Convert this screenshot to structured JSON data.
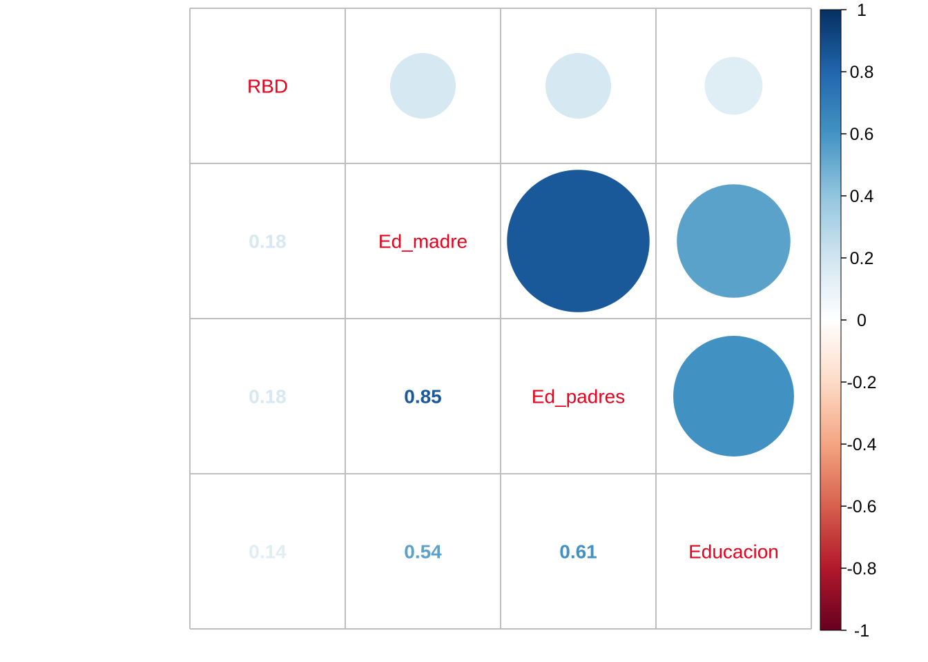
{
  "chart_data": {
    "type": "heatmap",
    "variables": [
      "RBD",
      "Ed_madre",
      "Ed_padres",
      "Educacion"
    ],
    "correlations": [
      [
        1,
        0.18,
        0.18,
        0.14
      ],
      [
        0.18,
        1,
        0.85,
        0.54
      ],
      [
        0.18,
        0.85,
        1,
        0.61
      ],
      [
        0.14,
        0.54,
        0.61,
        1
      ]
    ],
    "upper_method": "circle",
    "lower_method": "number",
    "diagonal": "variable names",
    "number_labels": [
      {
        "row": 1,
        "col": 0,
        "text": "0.18"
      },
      {
        "row": 2,
        "col": 0,
        "text": "0.18"
      },
      {
        "row": 2,
        "col": 1,
        "text": "0.85"
      },
      {
        "row": 3,
        "col": 0,
        "text": "0.14"
      },
      {
        "row": 3,
        "col": 1,
        "text": "0.54"
      },
      {
        "row": 3,
        "col": 2,
        "text": "0.61"
      }
    ],
    "colorbar": {
      "range": [
        -1,
        1
      ],
      "ticks": [
        "1",
        "0.8",
        "0.6",
        "0.4",
        "0.2",
        "0",
        "-0.2",
        "-0.4",
        "-0.6",
        "-0.8",
        "-1"
      ],
      "tick_values": [
        1,
        0.8,
        0.6,
        0.4,
        0.2,
        0,
        -0.2,
        -0.4,
        -0.6,
        -0.8,
        -1
      ],
      "colors": [
        "#67001F",
        "#B2182B",
        "#D6604D",
        "#F4A582",
        "#FDDBC7",
        "#FFFFFF",
        "#D1E5F0",
        "#92C5DE",
        "#4393C3",
        "#2166AC",
        "#053061"
      ]
    },
    "label_color": "#E8001C",
    "grid_color": "#BEBEBE",
    "grid": true
  }
}
